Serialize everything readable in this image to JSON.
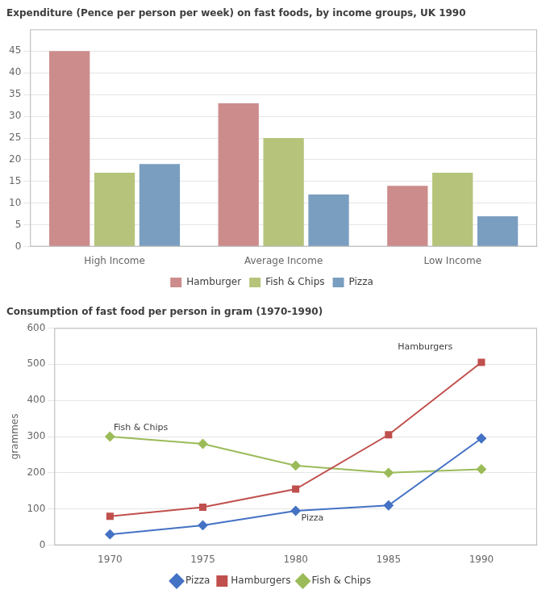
{
  "chart_data": [
    {
      "type": "bar",
      "title": "Expenditure (Pence per person per week) on fast foods, by income groups, UK 1990",
      "categories": [
        "High Income",
        "Average Income",
        "Low Income"
      ],
      "series": [
        {
          "name": "Hamburger",
          "color": "#cd8c8c",
          "values": [
            45,
            33,
            14
          ]
        },
        {
          "name": "Fish & Chips",
          "color": "#b5c47a",
          "values": [
            17,
            25,
            17
          ]
        },
        {
          "name": "Pizza",
          "color": "#7a9ec0",
          "values": [
            19,
            12,
            7
          ]
        }
      ],
      "ylim": [
        0,
        50
      ],
      "yticks": [
        0,
        5,
        10,
        15,
        20,
        25,
        30,
        35,
        40,
        45
      ],
      "grid": true,
      "legend": "bottom"
    },
    {
      "type": "line",
      "title": "Consumption of fast food per person in gram (1970-1990)",
      "ylabel": "grammes",
      "x": [
        1970,
        1975,
        1980,
        1985,
        1990
      ],
      "xlim": [
        1967,
        1993
      ],
      "xticks": [
        1970,
        1975,
        1980,
        1985,
        1990
      ],
      "series": [
        {
          "name": "Pizza",
          "color": "#4472c4",
          "marker": "diamond",
          "values": [
            30,
            55,
            95,
            110,
            295
          ]
        },
        {
          "name": "Hamburgers",
          "color": "#c0504d",
          "marker": "square",
          "values": [
            80,
            105,
            155,
            305,
            505
          ]
        },
        {
          "name": "Fish & Chips",
          "color": "#9bbb59",
          "marker": "diamond",
          "values": [
            300,
            280,
            220,
            200,
            210
          ]
        }
      ],
      "ylim": [
        0,
        600
      ],
      "yticks": [
        0,
        100,
        200,
        300,
        400,
        500,
        600
      ],
      "grid": true,
      "legend": "bottom",
      "annotations": [
        {
          "text": "Fish & Chips",
          "x": 1970.2,
          "y": 318
        },
        {
          "text": "Hamburgers",
          "x": 1985.5,
          "y": 540
        },
        {
          "text": "Pizza",
          "x": 1980.3,
          "y": 68
        }
      ]
    }
  ]
}
